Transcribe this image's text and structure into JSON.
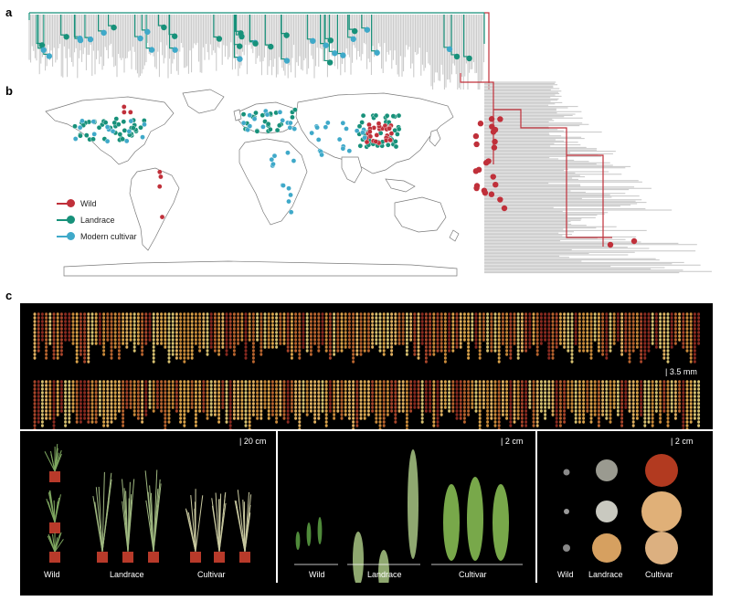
{
  "panels": {
    "a": "a",
    "b": "b",
    "c": "c"
  },
  "legend": [
    {
      "label": "Wild",
      "color": "#c0303a"
    },
    {
      "label": "Landrace",
      "color": "#17917a"
    },
    {
      "label": "Modern cultivar",
      "color": "#3fa9c9"
    }
  ],
  "colors": {
    "tree_gray": "#c6c6c6",
    "wild": "#c0303a",
    "landrace": "#17917a",
    "modern": "#3fa9c9"
  },
  "seed_panel": {
    "scale_bar": "3.5 mm"
  },
  "plant_panel": {
    "scale_bar": "20 cm",
    "labels": {
      "wild": "Wild",
      "landrace": "Landrace",
      "cultivar": "Cultivar"
    }
  },
  "panicle_panel": {
    "scale_bar": "2 cm",
    "labels": {
      "wild": "Wild",
      "landrace": "Landrace",
      "cultivar": "Cultivar"
    }
  },
  "grain_panel": {
    "scale_bar": "2 cm",
    "labels": {
      "wild": "Wild",
      "landrace": "Landrace",
      "cultivar": "Cultivar"
    }
  }
}
